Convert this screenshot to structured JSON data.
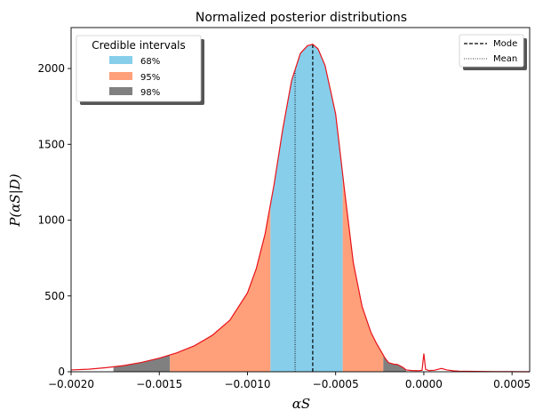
{
  "chart_data": {
    "type": "area",
    "title": "Normalized posterior distributions",
    "xlabel": "αS",
    "ylabel": "P(αS|D)",
    "xlim": [
      -0.002,
      0.0006
    ],
    "ylim": [
      0,
      2270
    ],
    "x_ticks": [
      -0.002,
      -0.0015,
      -0.001,
      -0.0005,
      0.0,
      0.0005
    ],
    "x_tick_labels": [
      "−0.0020",
      "−0.0015",
      "−0.0010",
      "−0.0005",
      "0.0000",
      "0.0005"
    ],
    "y_ticks": [
      0,
      500,
      1000,
      1500,
      2000
    ],
    "y_tick_labels": [
      "0",
      "500",
      "1000",
      "1500",
      "2000"
    ],
    "grid": false,
    "curve": {
      "color": "#e8131a",
      "x": [
        -0.002,
        -0.0019,
        -0.0018,
        -0.0017,
        -0.0016,
        -0.0015,
        -0.0014,
        -0.0013,
        -0.0012,
        -0.0011,
        -0.001,
        -0.00095,
        -0.0009,
        -0.00085,
        -0.0008,
        -0.00075,
        -0.0007,
        -0.00066,
        -0.00063,
        -0.0006,
        -0.00056,
        -0.0005,
        -0.00045,
        -0.0004,
        -0.00035,
        -0.0003,
        -0.00027,
        -0.00025,
        -0.00022,
        -0.0002,
        -0.00017,
        -0.00015,
        -0.00012,
        -0.0001,
        -7e-05,
        -3e-05,
        -1e-05,
        0.0,
        1e-05,
        3e-05,
        6e-05,
        0.0001,
        0.00013,
        0.00017,
        0.0002,
        0.0003,
        0.0004,
        0.0005,
        0.0006
      ],
      "y": [
        12,
        17,
        27,
        41,
        62,
        90,
        125,
        172,
        240,
        340,
        520,
        680,
        910,
        1230,
        1600,
        1920,
        2100,
        2150,
        2160,
        2130,
        2020,
        1700,
        1200,
        720,
        430,
        260,
        190,
        150,
        90,
        60,
        50,
        48,
        30,
        12,
        8,
        7,
        10,
        120,
        15,
        8,
        10,
        22,
        12,
        6,
        4,
        2,
        1,
        0.5,
        0
      ]
    },
    "credible_intervals": {
      "title": "Credible intervals",
      "legend_position": "upper left",
      "items": [
        {
          "label": "68%",
          "color": "#87ceeb",
          "range": [
            -0.00087,
            -0.00046
          ]
        },
        {
          "label": "95%",
          "color": "#ffa07a",
          "ranges": [
            [
              -0.00144,
              -0.00087
            ],
            [
              -0.00046,
              -0.00023
            ]
          ]
        },
        {
          "label": "98%",
          "color": "#808080",
          "ranges": [
            [
              -0.00176,
              -0.00144
            ],
            [
              -0.00023,
              -0.0001
            ]
          ]
        }
      ]
    },
    "reference_lines": {
      "legend_position": "upper right",
      "items": [
        {
          "label": "Mode",
          "x": -0.00063,
          "style": "dashed",
          "color": "#000000"
        },
        {
          "label": "Mean",
          "x": -0.00073,
          "style": "dotted",
          "color": "#000000"
        }
      ]
    }
  }
}
